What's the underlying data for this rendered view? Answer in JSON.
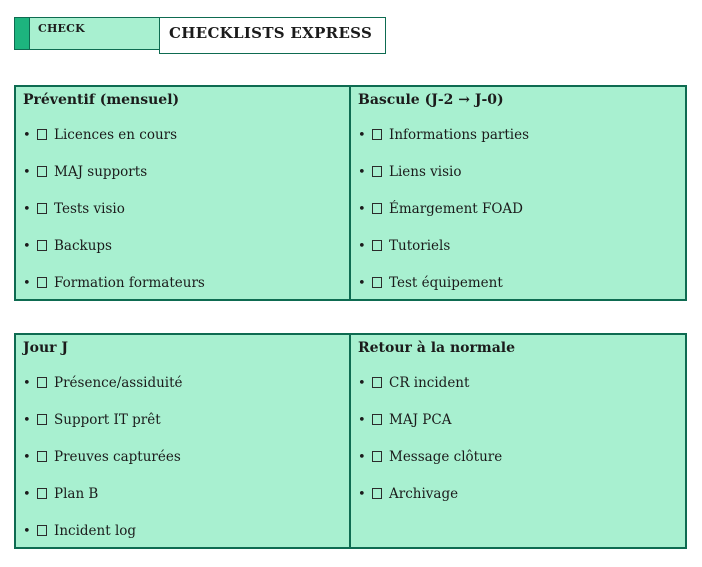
{
  "header": {
    "tag": "CHECK",
    "title": "CHECKLISTS EXPRESS"
  },
  "colors": {
    "cell_background": "#a8f0d0",
    "border_dark_green": "#0e6b51",
    "accent_square_green": "#1db47e",
    "text": "#1b1b1b"
  },
  "glyphs": {
    "bullet": "•",
    "checkbox": "empty-square"
  },
  "sections": {
    "preventif": {
      "title": "Préventif (mensuel)",
      "items": [
        "Licences en cours",
        "MAJ supports",
        "Tests visio",
        "Backups",
        "Formation formateurs"
      ]
    },
    "bascule": {
      "title": "Bascule (J-2 → J-0)",
      "items": [
        "Informations parties",
        "Liens visio",
        "Émargement FOAD",
        "Tutoriels",
        "Test équipement"
      ]
    },
    "jour_j": {
      "title": "Jour J",
      "items": [
        "Présence/assiduité",
        "Support IT prêt",
        "Preuves capturées",
        "Plan B",
        "Incident log"
      ]
    },
    "retour": {
      "title": "Retour à la normale",
      "items": [
        "CR incident",
        "MAJ PCA",
        "Message clôture",
        "Archivage"
      ]
    }
  }
}
